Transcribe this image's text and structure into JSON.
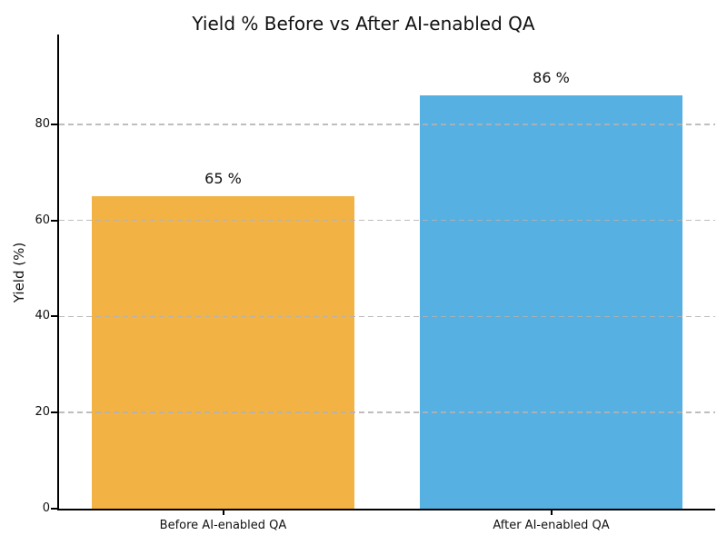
{
  "chart_data": {
    "type": "bar",
    "title": "Yield % Before vs After AI-enabled QA",
    "xlabel": "",
    "ylabel": "Yield (%)",
    "categories": [
      "Before AI-enabled QA",
      "After AI-enabled QA"
    ],
    "values": [
      65,
      86
    ],
    "bar_labels": [
      "65 %",
      "86 %"
    ],
    "bar_colors": [
      "#F2B344",
      "#56B1E2"
    ],
    "ylim": [
      0,
      98.7
    ],
    "yticks": [
      0,
      20,
      40,
      60,
      80
    ],
    "bar_width_fraction": 0.8,
    "grid": "horizontal dashed",
    "gridline_color": "#C3C3C3",
    "legend": "none",
    "background_color": "#FFFFFF",
    "axis_color": "#000000"
  }
}
